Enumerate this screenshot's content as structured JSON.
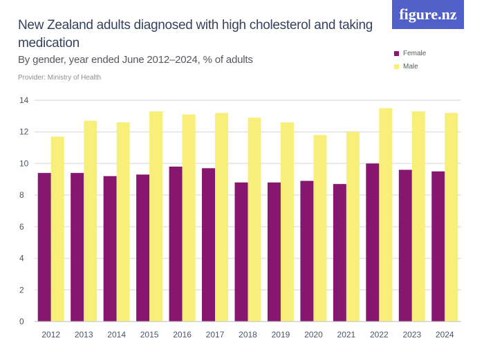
{
  "title": "New Zealand adults diagnosed with high cholesterol and taking medication",
  "subtitle": "By gender, year ended June 2012–2024, % of adults",
  "provider": "Provider: Ministry of Health",
  "logo": "figure.nz",
  "chart_data": {
    "type": "bar",
    "categories": [
      "2012",
      "2013",
      "2014",
      "2015",
      "2016",
      "2017",
      "2018",
      "2019",
      "2020",
      "2021",
      "2022",
      "2023",
      "2024"
    ],
    "series": [
      {
        "name": "Female",
        "color": "#86166e",
        "values": [
          9.4,
          9.4,
          9.2,
          9.3,
          9.8,
          9.7,
          8.8,
          8.8,
          8.9,
          8.7,
          10.0,
          9.6,
          9.5
        ]
      },
      {
        "name": "Male",
        "color": "#f8ef7a",
        "values": [
          11.7,
          12.7,
          12.6,
          13.3,
          13.1,
          13.2,
          12.9,
          12.6,
          11.8,
          12.0,
          13.5,
          13.3,
          13.2
        ]
      }
    ],
    "ylim": [
      0,
      14
    ],
    "yticks": [
      0,
      2,
      4,
      6,
      8,
      10,
      12,
      14
    ],
    "grid": true,
    "legend": "top-right"
  }
}
